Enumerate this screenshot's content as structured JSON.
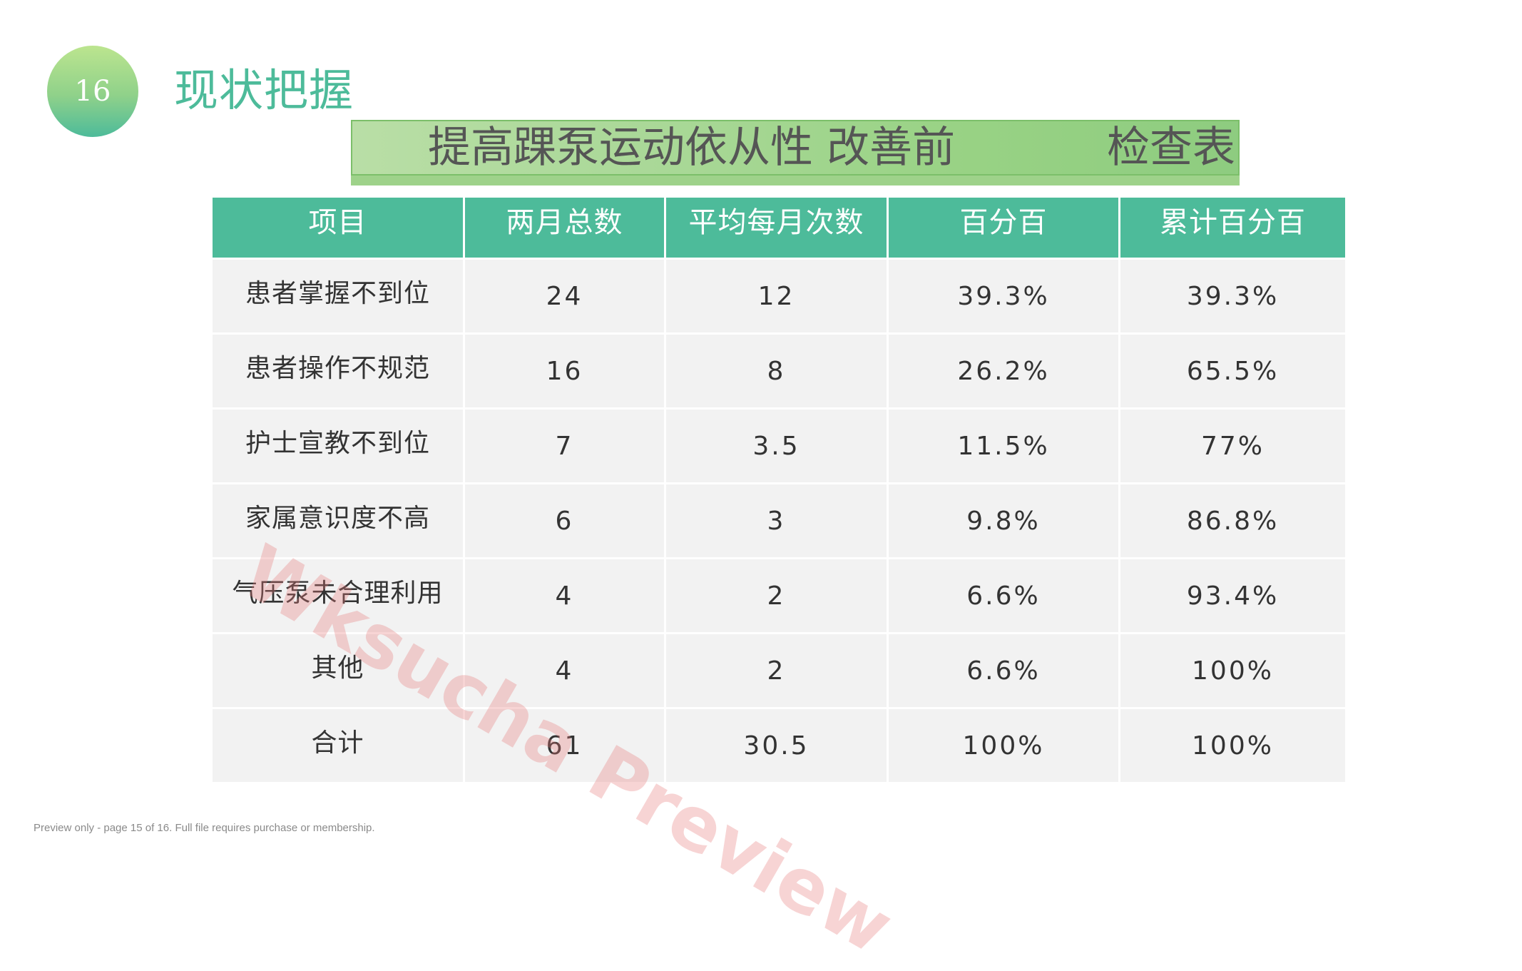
{
  "slide": {
    "page_number": "16",
    "section_title": "现状把握",
    "banner_title_main": "提高踝泵运动依从性 改善前",
    "banner_title_tail": "检查表"
  },
  "table": {
    "headers": [
      "项目",
      "两月总数",
      "平均每月次数",
      "百分百",
      "累计百分百"
    ],
    "rows": [
      [
        "患者掌握不到位",
        "24",
        "12",
        "39.3%",
        "39.3%"
      ],
      [
        "患者操作不规范",
        "16",
        "8",
        "26.2%",
        "65.5%"
      ],
      [
        "护士宣教不到位",
        "7",
        "3.5",
        "11.5%",
        "77%"
      ],
      [
        "家属意识度不高",
        "6",
        "3",
        "9.8%",
        "86.8%"
      ],
      [
        "气压泵未合理利用",
        "4",
        "2",
        "6.6%",
        "93.4%"
      ],
      [
        "其他",
        "4",
        "2",
        "6.6%",
        "100%"
      ],
      [
        "合计",
        "61",
        "30.5",
        "100%",
        "100%"
      ]
    ]
  },
  "watermark": "Wksucha Preview",
  "footer_note": "Preview only - page 15 of 16. Full file requires purchase or membership.",
  "colors": {
    "accent": "#4dbb9a",
    "banner": "#a9d897",
    "cell_background": "#f2f2f2",
    "watermark": "#e67878"
  }
}
